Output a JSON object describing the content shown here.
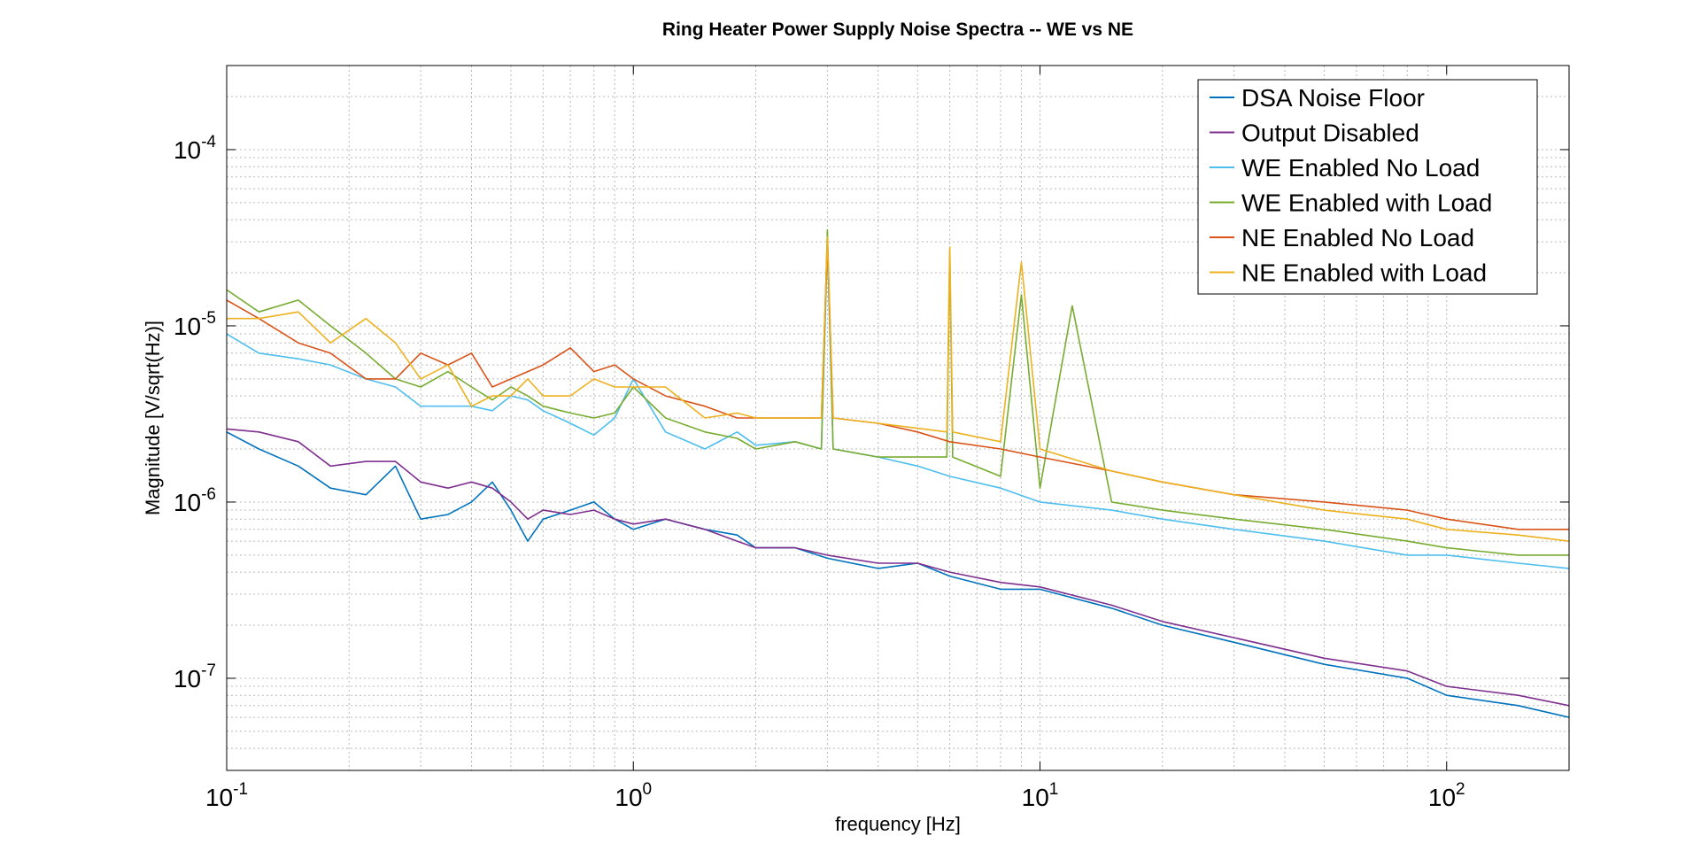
{
  "chart_data": {
    "type": "line",
    "title": "Ring Heater Power Supply Noise Spectra -- WE vs NE",
    "xlabel": "frequency [Hz]",
    "ylabel": "Magnitude [V/sqrt(Hz)]",
    "x_scale": "log",
    "y_scale": "log",
    "xlim": [
      0.1,
      200
    ],
    "ylim": [
      3e-08,
      0.0003
    ],
    "grid": true,
    "legend_position": "top-right",
    "x_ticks": [
      {
        "value": 0.1,
        "base": "10",
        "exp": "-1"
      },
      {
        "value": 1,
        "base": "10",
        "exp": "0"
      },
      {
        "value": 10,
        "base": "10",
        "exp": "1"
      },
      {
        "value": 100,
        "base": "10",
        "exp": "2"
      }
    ],
    "y_ticks": [
      {
        "value": 1e-07,
        "base": "10",
        "exp": "-7"
      },
      {
        "value": 1e-06,
        "base": "10",
        "exp": "-6"
      },
      {
        "value": 1e-05,
        "base": "10",
        "exp": "-5"
      },
      {
        "value": 0.0001,
        "base": "10",
        "exp": "-4"
      }
    ],
    "series": [
      {
        "name": "DSA Noise Floor",
        "color": "#0072BD",
        "x": [
          0.1,
          0.12,
          0.15,
          0.18,
          0.22,
          0.26,
          0.3,
          0.35,
          0.4,
          0.45,
          0.5,
          0.55,
          0.6,
          0.7,
          0.8,
          0.9,
          1.0,
          1.2,
          1.5,
          1.8,
          2.0,
          2.5,
          3.0,
          4.0,
          5.0,
          6.0,
          8.0,
          10,
          15,
          20,
          30,
          50,
          80,
          100,
          150,
          200
        ],
        "y": [
          2.5e-06,
          2e-06,
          1.6e-06,
          1.2e-06,
          1.1e-06,
          1.6e-06,
          8e-07,
          8.5e-07,
          1e-06,
          1.3e-06,
          9e-07,
          6e-07,
          8e-07,
          9e-07,
          1e-06,
          8e-07,
          7e-07,
          8e-07,
          7e-07,
          6.5e-07,
          5.5e-07,
          5.5e-07,
          4.8e-07,
          4.2e-07,
          4.5e-07,
          3.8e-07,
          3.2e-07,
          3.2e-07,
          2.5e-07,
          2e-07,
          1.6e-07,
          1.2e-07,
          1e-07,
          8e-08,
          7e-08,
          6e-08
        ]
      },
      {
        "name": "Output Disabled",
        "color": "#7E2F8E",
        "x": [
          0.1,
          0.12,
          0.15,
          0.18,
          0.22,
          0.26,
          0.3,
          0.35,
          0.4,
          0.45,
          0.5,
          0.55,
          0.6,
          0.7,
          0.8,
          0.9,
          1.0,
          1.2,
          1.5,
          1.8,
          2.0,
          2.5,
          3.0,
          4.0,
          5.0,
          6.0,
          8.0,
          10,
          15,
          20,
          30,
          50,
          80,
          100,
          150,
          200
        ],
        "y": [
          2.6e-06,
          2.5e-06,
          2.2e-06,
          1.6e-06,
          1.7e-06,
          1.7e-06,
          1.3e-06,
          1.2e-06,
          1.3e-06,
          1.2e-06,
          1e-06,
          8e-07,
          9e-07,
          8.5e-07,
          9e-07,
          8e-07,
          7.5e-07,
          8e-07,
          7e-07,
          6e-07,
          5.5e-07,
          5.5e-07,
          5e-07,
          4.5e-07,
          4.5e-07,
          4e-07,
          3.5e-07,
          3.3e-07,
          2.6e-07,
          2.1e-07,
          1.7e-07,
          1.3e-07,
          1.1e-07,
          9e-08,
          8e-08,
          7e-08
        ]
      },
      {
        "name": "WE Enabled No Load",
        "color": "#4DBEEE",
        "x": [
          0.1,
          0.12,
          0.15,
          0.18,
          0.22,
          0.26,
          0.3,
          0.35,
          0.4,
          0.45,
          0.5,
          0.55,
          0.6,
          0.7,
          0.8,
          0.9,
          1.0,
          1.2,
          1.5,
          1.8,
          2.0,
          2.5,
          2.9,
          3.0,
          3.1,
          4.0,
          5.0,
          6.0,
          8.0,
          10,
          15,
          20,
          30,
          50,
          80,
          100,
          150,
          200
        ],
        "y": [
          9e-06,
          7e-06,
          6.5e-06,
          6e-06,
          5e-06,
          4.5e-06,
          3.5e-06,
          3.5e-06,
          3.5e-06,
          3.3e-06,
          4e-06,
          3.8e-06,
          3.3e-06,
          2.8e-06,
          2.4e-06,
          3e-06,
          5e-06,
          2.5e-06,
          2e-06,
          2.5e-06,
          2.1e-06,
          2.2e-06,
          2e-06,
          2.8e-05,
          2e-06,
          1.8e-06,
          1.6e-06,
          1.4e-06,
          1.2e-06,
          1e-06,
          9e-07,
          8e-07,
          7e-07,
          6e-07,
          5e-07,
          5e-07,
          4.5e-07,
          4.2e-07
        ]
      },
      {
        "name": "WE Enabled with Load",
        "color": "#77AC30",
        "x": [
          0.1,
          0.12,
          0.15,
          0.18,
          0.22,
          0.26,
          0.3,
          0.35,
          0.4,
          0.45,
          0.5,
          0.55,
          0.6,
          0.7,
          0.8,
          0.9,
          1.0,
          1.2,
          1.5,
          1.8,
          2.0,
          2.5,
          2.9,
          3.0,
          3.1,
          4.0,
          5.9,
          6.0,
          6.1,
          8.0,
          9.0,
          10,
          12,
          15,
          20,
          30,
          50,
          80,
          100,
          150,
          200
        ],
        "y": [
          1.6e-05,
          1.2e-05,
          1.4e-05,
          1e-05,
          7e-06,
          5e-06,
          4.5e-06,
          5.5e-06,
          4.5e-06,
          3.8e-06,
          4.5e-06,
          4e-06,
          3.5e-06,
          3.2e-06,
          3e-06,
          3.2e-06,
          4.5e-06,
          3e-06,
          2.5e-06,
          2.3e-06,
          2e-06,
          2.2e-06,
          2e-06,
          3.5e-05,
          2e-06,
          1.8e-06,
          1.8e-06,
          2.7e-05,
          1.8e-06,
          1.4e-06,
          1.5e-05,
          1.2e-06,
          1.3e-05,
          1e-06,
          9e-07,
          8e-07,
          7e-07,
          6e-07,
          5.5e-07,
          5e-07,
          5e-07
        ]
      },
      {
        "name": "NE Enabled No Load",
        "color": "#D95319",
        "x": [
          0.1,
          0.12,
          0.15,
          0.18,
          0.22,
          0.26,
          0.3,
          0.35,
          0.4,
          0.45,
          0.5,
          0.55,
          0.6,
          0.7,
          0.8,
          0.9,
          1.0,
          1.2,
          1.5,
          1.8,
          2.0,
          2.5,
          2.9,
          3.0,
          3.1,
          4.0,
          5.0,
          6.0,
          8.0,
          10,
          15,
          20,
          30,
          50,
          80,
          100,
          150,
          200
        ],
        "y": [
          1.4e-05,
          1.1e-05,
          8e-06,
          7e-06,
          5e-06,
          5e-06,
          7e-06,
          6e-06,
          7e-06,
          4.5e-06,
          5e-06,
          5.5e-06,
          6e-06,
          7.5e-06,
          5.5e-06,
          6e-06,
          5e-06,
          4e-06,
          3.5e-06,
          3e-06,
          3e-06,
          3e-06,
          3e-06,
          3e-05,
          3e-06,
          2.8e-06,
          2.5e-06,
          2.2e-06,
          2e-06,
          1.8e-06,
          1.5e-06,
          1.3e-06,
          1.1e-06,
          1e-06,
          9e-07,
          8e-07,
          7e-07,
          7e-07
        ]
      },
      {
        "name": "NE Enabled with Load",
        "color": "#EDB120",
        "x": [
          0.1,
          0.12,
          0.15,
          0.18,
          0.22,
          0.26,
          0.3,
          0.35,
          0.4,
          0.45,
          0.5,
          0.55,
          0.6,
          0.7,
          0.8,
          0.9,
          1.0,
          1.2,
          1.5,
          1.8,
          2.0,
          2.5,
          2.9,
          3.0,
          3.1,
          4.0,
          5.9,
          6.0,
          6.1,
          8.0,
          9.0,
          10,
          15,
          20,
          30,
          50,
          80,
          100,
          150,
          200
        ],
        "y": [
          1.1e-05,
          1.1e-05,
          1.2e-05,
          8e-06,
          1.1e-05,
          8e-06,
          5e-06,
          6e-06,
          3.5e-06,
          4e-06,
          4e-06,
          5e-06,
          4e-06,
          4e-06,
          5e-06,
          4.5e-06,
          4.5e-06,
          4.5e-06,
          3e-06,
          3.2e-06,
          3e-06,
          3e-06,
          3e-06,
          3.2e-05,
          3e-06,
          2.8e-06,
          2.5e-06,
          2.8e-05,
          2.5e-06,
          2.2e-06,
          2.3e-05,
          2e-06,
          1.5e-06,
          1.3e-06,
          1.1e-06,
          9e-07,
          8e-07,
          7e-07,
          6.5e-07,
          6e-07
        ]
      }
    ]
  }
}
